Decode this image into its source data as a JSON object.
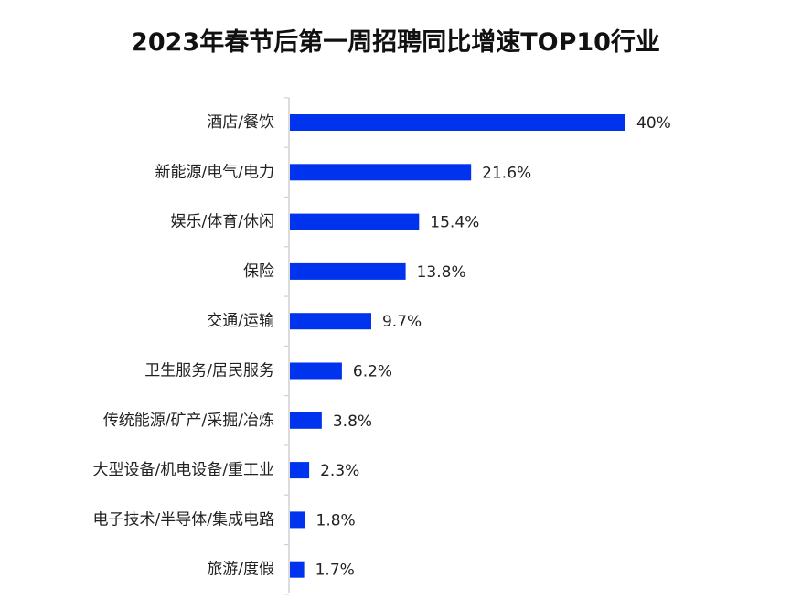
{
  "chart_data": {
    "type": "bar",
    "orientation": "horizontal",
    "title": "2023年春节后第一周招聘同比增速TOP10行业",
    "categories": [
      "酒店/餐饮",
      "新能源/电气/电力",
      "娱乐/体育/休闲",
      "保险",
      "交通/运输",
      "卫生服务/居民服务",
      "传统能源/矿产/采掘/冶炼",
      "大型设备/机电设备/重工业",
      "电子技术/半导体/集成电路",
      "旅游/度假"
    ],
    "values": [
      40,
      21.6,
      15.4,
      13.8,
      9.7,
      6.2,
      3.8,
      2.3,
      1.8,
      1.7
    ],
    "value_labels": [
      "40%",
      "21.6%",
      "15.4%",
      "13.8%",
      "9.7%",
      "6.2%",
      "3.8%",
      "2.3%",
      "1.8%",
      "1.7%"
    ],
    "unit": "%",
    "xlabel": "",
    "ylabel": "",
    "xlim": [
      0,
      40
    ],
    "grid": false,
    "legend": "none",
    "bar_color": "#0033ee",
    "axis_color": "#d0d0d0"
  }
}
